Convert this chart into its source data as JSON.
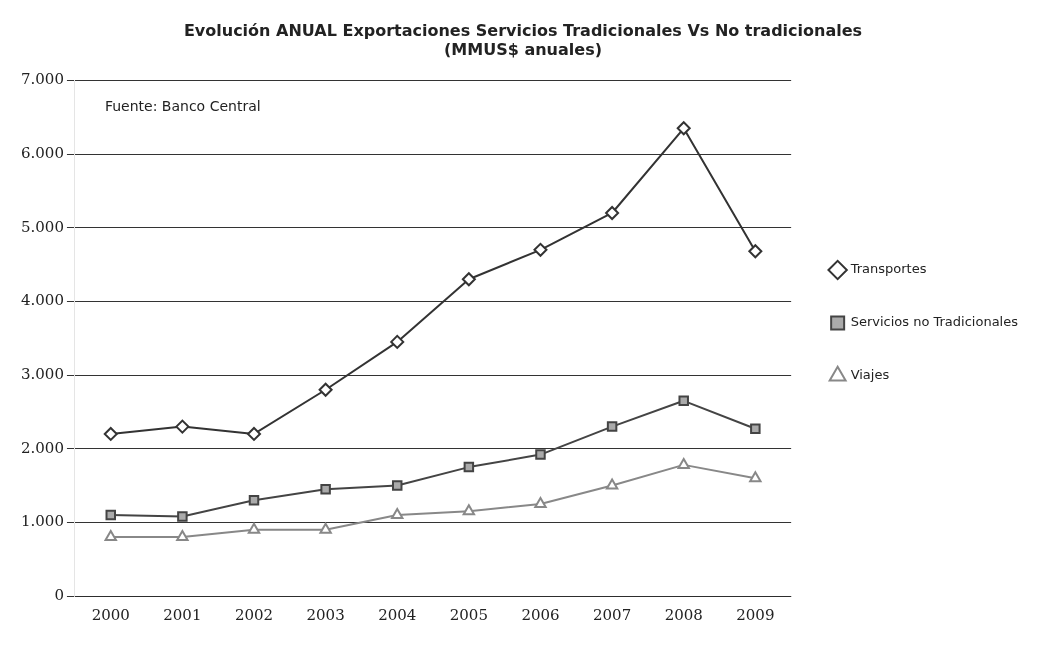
{
  "chart_data": {
    "type": "line",
    "title": "Evolución ANUAL Exportaciones Servicios Tradicionales Vs No tradicionales",
    "subtitle": "(MMUS$ anuales)",
    "annotations": [
      "Fuente: Banco Central"
    ],
    "categories": [
      "2000",
      "2001",
      "2002",
      "2003",
      "2004",
      "2005",
      "2006",
      "2007",
      "2008",
      "2009"
    ],
    "series": [
      {
        "name": "Transportes",
        "color": "#333333",
        "marker": "diamond",
        "values": [
          2200,
          2300,
          2200,
          2800,
          3450,
          4300,
          4700,
          5200,
          6350,
          4680
        ]
      },
      {
        "name": "Servicios no Tradicionales",
        "color": "#444444",
        "marker": "square",
        "values": [
          1100,
          1080,
          1300,
          1450,
          1500,
          1750,
          1920,
          2300,
          2650,
          2270
        ]
      },
      {
        "name": "Viajes",
        "color": "#888888",
        "marker": "triangle",
        "values": [
          800,
          800,
          900,
          900,
          1100,
          1150,
          1250,
          1500,
          1780,
          1600
        ]
      }
    ],
    "ylim": [
      0,
      7000
    ],
    "yticks": [
      {
        "value": 0,
        "label": "0"
      },
      {
        "value": 1000,
        "label": "1.000"
      },
      {
        "value": 2000,
        "label": "2.000"
      },
      {
        "value": 3000,
        "label": "3.000"
      },
      {
        "value": 4000,
        "label": "4.000"
      },
      {
        "value": 5000,
        "label": "5.000"
      },
      {
        "value": 6000,
        "label": "6.000"
      },
      {
        "value": 7000,
        "label": "7.000"
      }
    ],
    "grid": "y",
    "legend": "right",
    "line_style": "solid"
  }
}
